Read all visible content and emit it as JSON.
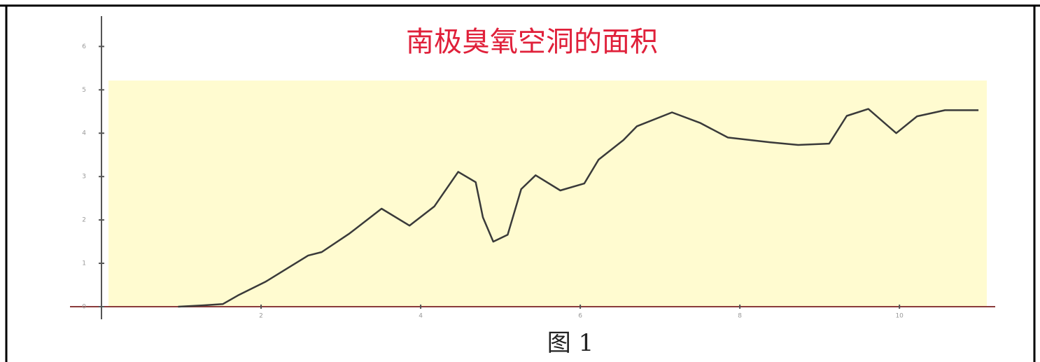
{
  "chart_data": {
    "type": "line",
    "title": "南极臭氧空洞的面积",
    "caption": "图 1",
    "x": [
      0.96,
      1.27,
      1.52,
      1.71,
      2.06,
      2.59,
      2.76,
      3.11,
      3.51,
      3.86,
      4.17,
      4.47,
      4.69,
      4.78,
      4.91,
      5.09,
      5.26,
      5.44,
      5.75,
      6.05,
      6.23,
      6.54,
      6.71,
      7.15,
      7.5,
      7.85,
      8.38,
      8.73,
      9.12,
      9.34,
      9.61,
      9.96,
      10.22,
      10.57,
      10.99
    ],
    "values": [
      0,
      0.03,
      0.06,
      0.26,
      0.58,
      1.18,
      1.26,
      1.69,
      2.26,
      1.87,
      2.31,
      3.11,
      2.87,
      2.06,
      1.5,
      1.66,
      2.71,
      3.03,
      2.68,
      2.84,
      3.39,
      3.84,
      4.16,
      4.48,
      4.24,
      3.9,
      3.79,
      3.73,
      3.76,
      4.4,
      4.56,
      4.0,
      4.39,
      4.53,
      4.53
    ],
    "color": "#3a3a3a",
    "xlim": [
      0,
      11.2
    ],
    "xticks": [
      2,
      4,
      6,
      8,
      10
    ],
    "ylim": [
      0,
      6.7
    ],
    "yticks": [
      0,
      1,
      2,
      3,
      4,
      5,
      6
    ]
  }
}
